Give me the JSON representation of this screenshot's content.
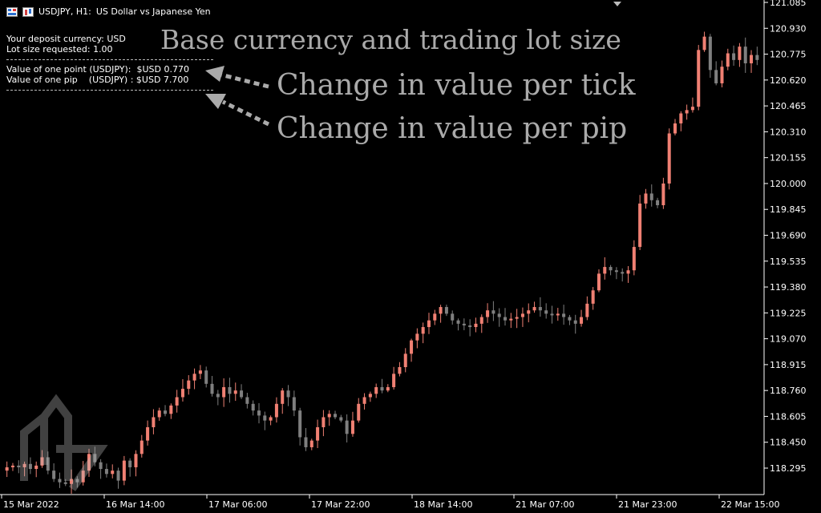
{
  "header": {
    "symbol": "USDJPY, H1:",
    "description": "US Dollar vs Japanese Yen"
  },
  "info_panel": {
    "deposit_currency": "Your deposit currency: USD",
    "lot_size": "Lot size requested: 1.00",
    "point_value": "Value of one point (USDJPY):  $USD 0.770",
    "pip_value": "Value of one pip    (USDJPY) : $USD 7.700"
  },
  "annotations": {
    "base_currency": "Base currency and trading lot size",
    "tick_value": "Change in value per tick",
    "pip_value": "Change in value per pip"
  },
  "colors": {
    "background": "#000000",
    "bull": "#f08073",
    "bear": "#7f7f7f",
    "grid_frame": "#ffffff",
    "annotation": "#aaaaaa"
  },
  "chart_data": {
    "type": "candlestick",
    "title": "",
    "price_ticks": [
      "121.085",
      "120.930",
      "120.775",
      "120.620",
      "120.465",
      "120.310",
      "120.155",
      "120.000",
      "119.845",
      "119.690",
      "119.535",
      "119.380",
      "119.225",
      "119.070",
      "118.915",
      "118.760",
      "118.605",
      "118.450",
      "118.295"
    ],
    "time_ticks": [
      "15 Mar 2022",
      "16 Mar 14:00",
      "17 Mar 06:00",
      "17 Mar 22:00",
      "18 Mar 14:00",
      "21 Mar 07:00",
      "21 Mar 23:00",
      "22 Mar 15:00"
    ],
    "close_series": [
      118.3,
      118.31,
      118.3,
      118.32,
      118.29,
      118.31,
      118.36,
      118.28,
      118.23,
      118.21,
      118.2,
      118.23,
      118.21,
      118.28,
      118.38,
      118.33,
      118.29,
      118.26,
      118.28,
      118.22,
      118.34,
      118.3,
      118.38,
      118.46,
      118.54,
      118.6,
      118.64,
      118.62,
      118.67,
      118.72,
      118.77,
      118.82,
      118.86,
      118.88,
      118.8,
      118.74,
      118.72,
      118.78,
      118.74,
      118.76,
      118.72,
      118.68,
      118.64,
      118.61,
      118.58,
      118.6,
      118.68,
      118.76,
      118.72,
      118.64,
      118.48,
      118.42,
      118.46,
      118.54,
      118.6,
      118.62,
      118.6,
      118.58,
      118.5,
      118.58,
      118.68,
      118.72,
      118.74,
      118.78,
      118.76,
      118.78,
      118.86,
      118.9,
      118.98,
      119.06,
      119.1,
      119.14,
      119.18,
      119.22,
      119.26,
      119.22,
      119.18,
      119.16,
      119.15,
      119.14,
      119.16,
      119.2,
      119.24,
      119.22,
      119.2,
      119.18,
      119.19,
      119.2,
      119.22,
      119.24,
      119.26,
      119.24,
      119.22,
      119.21,
      119.22,
      119.2,
      119.18,
      119.16,
      119.2,
      119.28,
      119.36,
      119.46,
      119.5,
      119.48,
      119.47,
      119.46,
      119.48,
      119.62,
      119.88,
      119.94,
      119.9,
      119.87,
      120.0,
      120.3,
      120.36,
      120.42,
      120.44,
      120.46,
      120.8,
      120.88,
      120.68,
      120.6,
      120.7,
      120.78,
      120.74,
      120.82,
      120.72,
      120.77,
      120.74
    ],
    "ylim": [
      118.2,
      121.1
    ]
  }
}
